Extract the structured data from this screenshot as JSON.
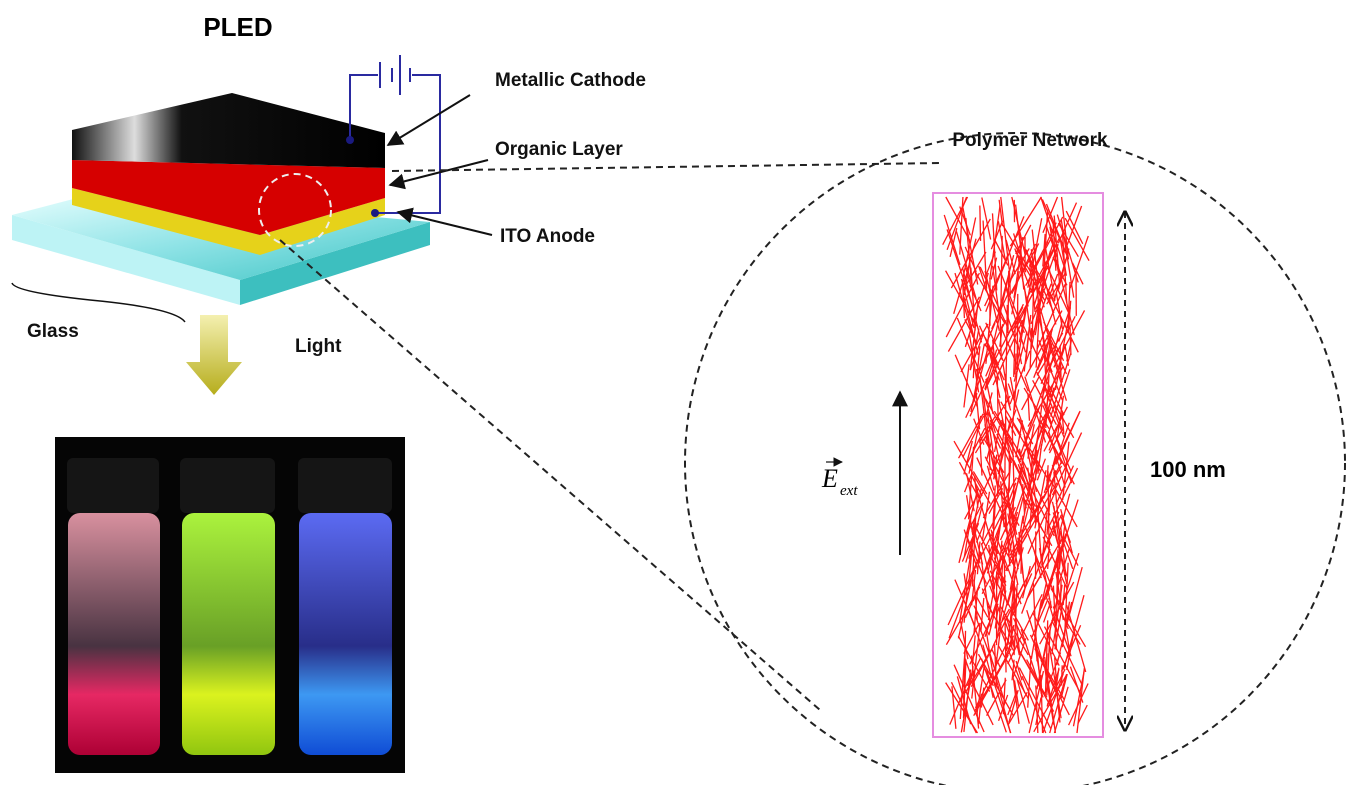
{
  "header": {
    "title": "PLED"
  },
  "labels": {
    "cathode": "Metallic Cathode",
    "organic": "Organic Layer",
    "anode": "ITO Anode",
    "glass": "Glass",
    "light": "Light"
  },
  "network": {
    "title": "Polymer Network",
    "scale": "100 nm",
    "field": "E",
    "field_subscript": "ext"
  }
}
